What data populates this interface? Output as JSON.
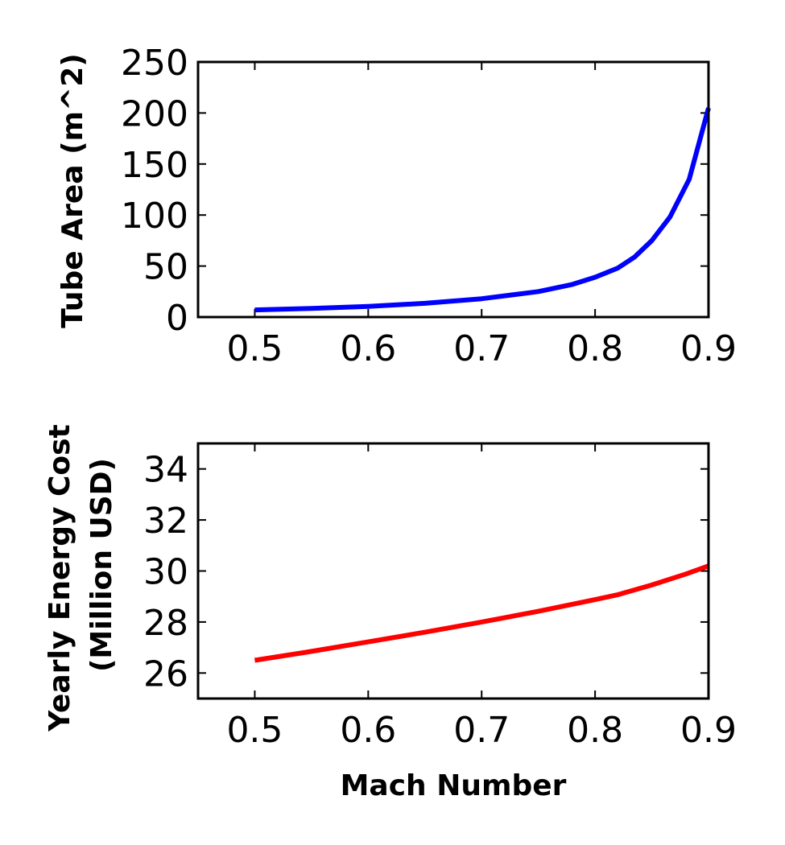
{
  "chart_data": [
    {
      "type": "line",
      "xlabel": "",
      "ylabel": "Tube Area (m^2)",
      "xlim": [
        0.45,
        0.9
      ],
      "ylim": [
        0,
        250
      ],
      "xticks": [
        0.5,
        0.6,
        0.7,
        0.8,
        0.9
      ],
      "xtick_labels": [
        "0.5",
        "0.6",
        "0.7",
        "0.8",
        "0.9"
      ],
      "yticks": [
        0,
        50,
        100,
        150,
        200,
        250
      ],
      "ytick_labels": [
        "0",
        "50",
        "100",
        "150",
        "200",
        "250"
      ],
      "grid": false,
      "series": [
        {
          "color": "#0000ff",
          "x": [
            0.5,
            0.55,
            0.6,
            0.65,
            0.7,
            0.75,
            0.78,
            0.8,
            0.82,
            0.835,
            0.85,
            0.866,
            0.883,
            0.9
          ],
          "y": [
            7,
            8.5,
            10.5,
            13.5,
            18,
            25,
            32,
            39,
            48,
            59,
            75,
            98,
            135,
            205
          ]
        }
      ]
    },
    {
      "type": "line",
      "xlabel": "Mach Number",
      "ylabel": "Yearly Energy Cost (Million USD)",
      "ylabel_lines": [
        "Yearly Energy Cost",
        "(Million USD)"
      ],
      "xlim": [
        0.45,
        0.9
      ],
      "ylim": [
        25,
        35
      ],
      "xticks": [
        0.5,
        0.6,
        0.7,
        0.8,
        0.9
      ],
      "xtick_labels": [
        "0.5",
        "0.6",
        "0.7",
        "0.8",
        "0.9"
      ],
      "yticks": [
        26,
        28,
        30,
        32,
        34
      ],
      "ytick_labels": [
        "26",
        "28",
        "30",
        "32",
        "34"
      ],
      "grid": false,
      "series": [
        {
          "color": "#ff0000",
          "x": [
            0.5,
            0.55,
            0.6,
            0.65,
            0.7,
            0.75,
            0.8,
            0.82,
            0.85,
            0.88,
            0.9
          ],
          "y": [
            26.5,
            26.85,
            27.22,
            27.6,
            28.0,
            28.42,
            28.88,
            29.07,
            29.45,
            29.88,
            30.2
          ]
        }
      ]
    }
  ]
}
